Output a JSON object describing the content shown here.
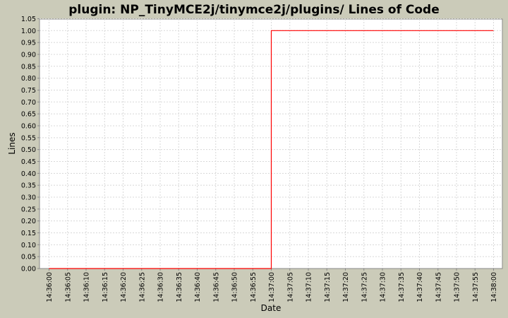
{
  "chart_data": {
    "type": "line",
    "title": "plugin: NP_TinyMCE2j/tinymce2j/plugins/ Lines of Code",
    "xlabel": "Date",
    "ylabel": "Lines",
    "ylim": [
      0,
      1.05
    ],
    "grid": true,
    "y_ticks": [
      "0.00",
      "0.05",
      "0.10",
      "0.15",
      "0.20",
      "0.25",
      "0.30",
      "0.35",
      "0.40",
      "0.45",
      "0.50",
      "0.55",
      "0.60",
      "0.65",
      "0.70",
      "0.75",
      "0.80",
      "0.85",
      "0.90",
      "0.95",
      "1.00",
      "1.05"
    ],
    "x_ticks": [
      "14:36:00",
      "14:36:05",
      "14:36:10",
      "14:36:15",
      "14:36:20",
      "14:36:25",
      "14:36:30",
      "14:36:35",
      "14:36:40",
      "14:36:45",
      "14:36:50",
      "14:36:55",
      "14:37:00",
      "14:37:05",
      "14:37:10",
      "14:37:15",
      "14:37:20",
      "14:37:25",
      "14:37:30",
      "14:37:35",
      "14:37:40",
      "14:37:45",
      "14:37:50",
      "14:37:55",
      "14:38:00"
    ],
    "series": [
      {
        "color": "#ff0000",
        "step": true,
        "points": [
          [
            "14:36:00",
            0
          ],
          [
            "14:37:00",
            0
          ],
          [
            "14:37:00",
            1
          ],
          [
            "14:38:00",
            1
          ]
        ]
      }
    ]
  }
}
